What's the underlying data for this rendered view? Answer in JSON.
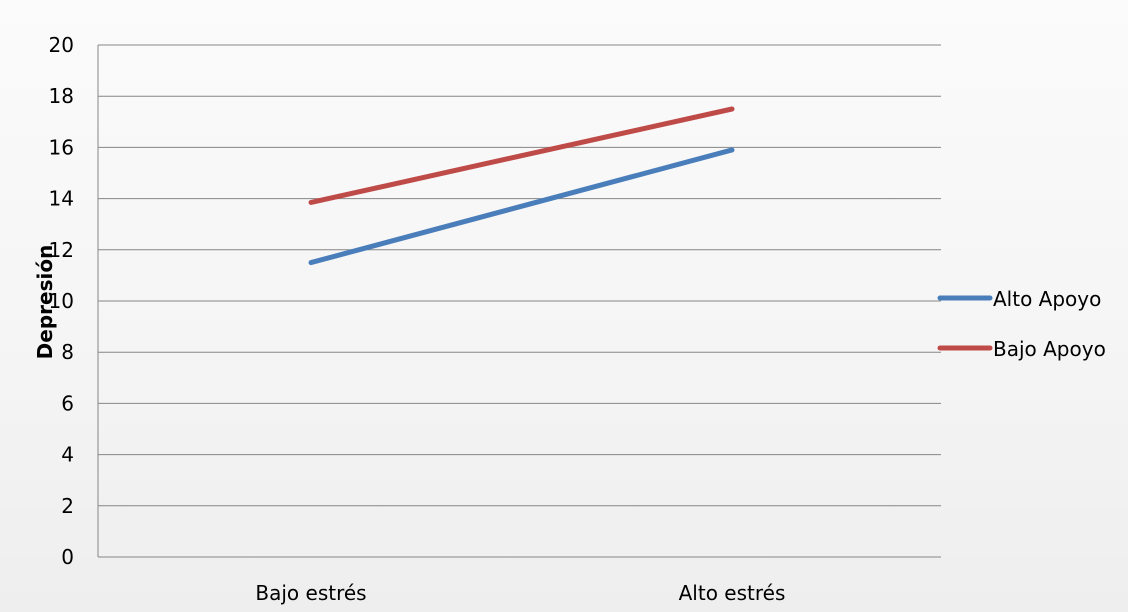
{
  "chart_data": {
    "type": "line",
    "categories": [
      "Bajo estrés",
      "Alto estrés"
    ],
    "series": [
      {
        "name": "Alto Apoyo",
        "values": [
          11.5,
          15.9
        ],
        "color": "#4a7ebb"
      },
      {
        "name": "Bajo Apoyo",
        "values": [
          13.85,
          17.5
        ],
        "color": "#be4b48"
      }
    ],
    "ylabel": "Depresión",
    "xlabel": "",
    "ylim": [
      0,
      20
    ],
    "yticks": [
      0,
      2,
      4,
      6,
      8,
      10,
      12,
      14,
      16,
      18,
      20
    ],
    "grid": true,
    "legend_position": "right"
  }
}
